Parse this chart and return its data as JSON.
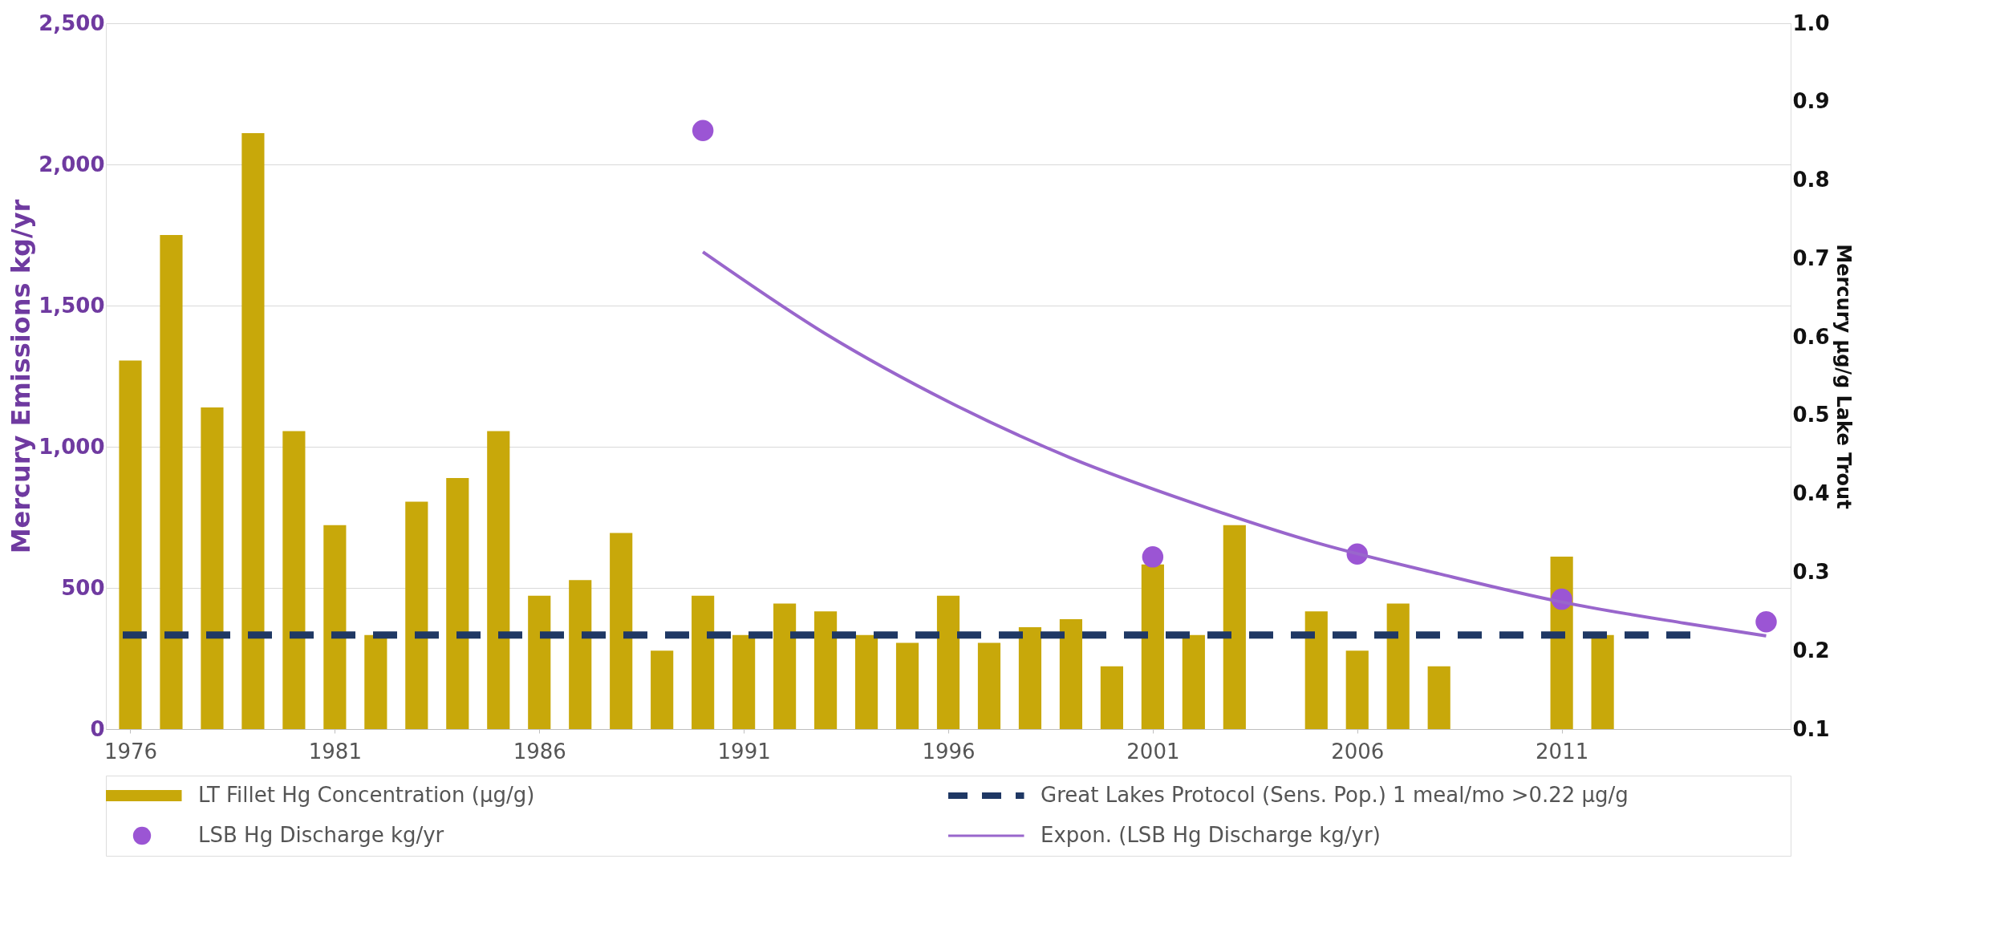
{
  "chart_data": {
    "type": "bar",
    "xlim": [
      1975.5,
      2016.5
    ],
    "xticks": [
      1976,
      1981,
      1986,
      1991,
      1996,
      2001,
      2006,
      2011
    ],
    "ylabel": "Mercury Emissions kg/yr",
    "y2label": "Mercury µg/g Lake Trout",
    "ylim": [
      0,
      2500
    ],
    "yticks": [
      {
        "value": 0,
        "label": "0"
      },
      {
        "value": 500,
        "label": "500"
      },
      {
        "value": 1000,
        "label": "1,000"
      },
      {
        "value": 1500,
        "label": "1,500"
      },
      {
        "value": 2000,
        "label": "2,000"
      },
      {
        "value": 2500,
        "label": "2,500"
      }
    ],
    "y2lim": [
      0.1,
      1.0
    ],
    "y2ticks": [
      0.1,
      0.2,
      0.3,
      0.4,
      0.5,
      0.6,
      0.7,
      0.8,
      0.9,
      {
        "value": 1.0,
        "label": "1.0"
      }
    ],
    "grid": "y",
    "legend": "bottom",
    "series": [
      {
        "name": "LT Fillet Hg Concentration (µg/g)",
        "axis": "y2",
        "color": "#c8a80a",
        "x": [
          1976,
          1977,
          1978,
          1979,
          1980,
          1981,
          1982,
          1983,
          1984,
          1985,
          1986,
          1987,
          1988,
          1989,
          1990,
          1991,
          1992,
          1993,
          1994,
          1995,
          1996,
          1997,
          1998,
          1999,
          2000,
          2001,
          2002,
          2003,
          2004,
          2005,
          2006,
          2007,
          2008,
          2009,
          2010,
          2011,
          2012
        ],
        "values": [
          0.57,
          0.73,
          0.51,
          0.86,
          0.48,
          0.36,
          0.22,
          0.39,
          0.42,
          0.48,
          0.27,
          0.29,
          0.35,
          0.2,
          0.27,
          0.22,
          0.26,
          0.25,
          0.22,
          0.21,
          0.27,
          0.21,
          0.23,
          0.24,
          0.18,
          0.31,
          0.22,
          0.36,
          null,
          0.25,
          0.2,
          0.26,
          0.18,
          null,
          null,
          0.32,
          0.22
        ]
      },
      {
        "name": "LSB Hg Discharge kg/yr",
        "type": "scatter",
        "axis": "y",
        "marker": "circle",
        "color": "#9b55d4",
        "x": [
          1990,
          2001,
          2006,
          2011,
          2016
        ],
        "values": [
          2120,
          610,
          620,
          460,
          380
        ]
      },
      {
        "name": "Expon. (LSB Hg Discharge kg/yr)",
        "type": "line",
        "axis": "y",
        "marker": "none",
        "line_style": "solid",
        "color": "#9966cc",
        "x": [
          1990,
          1993,
          1996,
          1999,
          2002,
          2005,
          2008,
          2011,
          2014,
          2016
        ],
        "values": [
          1690,
          1400,
          1160,
          960,
          800,
          660,
          550,
          450,
          375,
          330
        ]
      }
    ],
    "ref_lines": [
      {
        "axis": "y2",
        "value": 0.22,
        "label": "Great Lakes Protocol (Sens. Pop.) 1 meal/mo >0.22 µg/g",
        "color": "#1f3864",
        "line_style": "dashed"
      }
    ]
  }
}
